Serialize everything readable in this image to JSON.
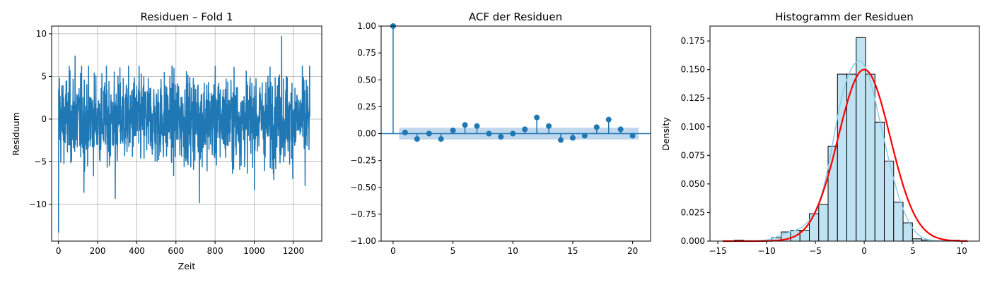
{
  "chart_data": [
    {
      "type": "line",
      "title": "Residuen – Fold 1",
      "xlabel": "Zeit",
      "ylabel": "Residuum",
      "xlim": [
        -35,
        1345
      ],
      "ylim": [
        -14.3,
        10.9
      ],
      "xticks": [
        0,
        200,
        400,
        600,
        800,
        1000,
        1200
      ],
      "yticks": [
        -10,
        -5,
        0,
        5,
        10
      ],
      "grid": true,
      "n_points": 1285,
      "series": [
        {
          "color": "#1f77b4",
          "x": [
            0,
            25,
            50,
            75,
            100,
            125,
            150,
            175,
            200,
            225,
            250,
            275,
            300,
            325,
            350,
            375,
            400,
            425,
            450,
            475,
            500,
            525,
            550,
            575,
            600,
            625,
            650,
            675,
            700,
            725,
            750,
            775,
            800,
            825,
            850,
            875,
            900,
            925,
            950,
            975,
            1000,
            1025,
            1050,
            1075,
            1100,
            1125,
            1150,
            1175,
            1200,
            1225,
            1250,
            1280
          ],
          "y": [
            -13.3,
            2.5,
            -4.2,
            3.1,
            -3.6,
            1.8,
            -2.9,
            2.2,
            -3.1,
            2.8,
            -2.4,
            3.4,
            -4.6,
            2.1,
            -3.3,
            2.6,
            -2.8,
            3.9,
            -4.1,
            1.5,
            -3.7,
            2.9,
            -2.5,
            3.2,
            -4.3,
            2.4,
            -2.9,
            3.6,
            -3.8,
            1.9,
            -3.2,
            2.8,
            -4.5,
            2.3,
            -2.6,
            3.1,
            -3.9,
            2.7,
            -2.4,
            3.5,
            -4.2,
            2.0,
            -3.3,
            2.9,
            -2.7,
            3.8,
            -4.4,
            2.5,
            -3.6,
            3.0,
            -4.0,
            0.5
          ],
          "extremes": [
            {
              "x": 0,
              "y": -13.3
            },
            {
              "x": 5,
              "y": 4.8
            },
            {
              "x": 85,
              "y": 7.4
            },
            {
              "x": 130,
              "y": -8.6
            },
            {
              "x": 290,
              "y": -9.3
            },
            {
              "x": 720,
              "y": -9.8
            },
            {
              "x": 1140,
              "y": 9.7
            },
            {
              "x": 1260,
              "y": -7.8
            }
          ]
        }
      ]
    },
    {
      "type": "stem",
      "title": "ACF der Residuen",
      "xlim": [
        -1,
        21.5
      ],
      "ylim": [
        -1.0,
        1.0
      ],
      "xticks": [
        0,
        5,
        10,
        15,
        20
      ],
      "yticks": [
        "-1.00",
        "-0.75",
        "-0.50",
        "-0.25",
        "0.00",
        "0.25",
        "0.50",
        "0.75",
        "1.00"
      ],
      "grid": false,
      "lags": [
        0,
        1,
        2,
        3,
        4,
        5,
        6,
        7,
        8,
        9,
        10,
        11,
        12,
        13,
        14,
        15,
        16,
        17,
        18,
        19,
        20
      ],
      "values": [
        1.0,
        0.01,
        -0.05,
        0.0,
        -0.05,
        0.03,
        0.08,
        0.07,
        0.0,
        -0.03,
        0.0,
        0.04,
        0.15,
        0.07,
        -0.06,
        -0.04,
        -0.02,
        0.06,
        0.13,
        0.04,
        -0.02
      ],
      "confidence_band": [
        0.5,
        20.5,
        -0.055,
        0.055
      ],
      "color": "#1f77b4",
      "band_color": "#b4d0ea"
    },
    {
      "type": "histogram",
      "title": "Histogramm der Residuen",
      "xlabel": "",
      "ylabel": "Density",
      "xlim": [
        -15.8,
        11.8
      ],
      "ylim": [
        0,
        0.188
      ],
      "xticks": [
        -15,
        -10,
        -5,
        0,
        5,
        10
      ],
      "yticks": [
        "0.000",
        "0.025",
        "0.050",
        "0.075",
        "0.100",
        "0.125",
        "0.150",
        "0.175"
      ],
      "grid": false,
      "bin_edges": [
        -13.3,
        -12.34,
        -11.38,
        -10.42,
        -9.46,
        -8.5,
        -7.54,
        -6.58,
        -5.62,
        -4.66,
        -3.7,
        -2.74,
        -1.78,
        -0.82,
        0.14,
        1.1,
        2.06,
        3.02,
        3.98,
        4.94,
        5.9,
        6.86,
        7.82,
        8.78,
        9.74
      ],
      "densities": [
        0.0008,
        0,
        0,
        0,
        0.003,
        0.008,
        0.0095,
        0.0095,
        0.024,
        0.032,
        0.083,
        0.146,
        0.146,
        0.178,
        0.146,
        0.104,
        0.07,
        0.034,
        0.016,
        0.002,
        0.001,
        0,
        0,
        0.0008
      ],
      "bar_color": "#bfe3f2",
      "kde_color": "#87ceeb",
      "normal_fit": {
        "mean": 0.0,
        "std": 2.66,
        "color": "#ff0000",
        "x_range": [
          -14.5,
          10.6
        ]
      }
    }
  ]
}
